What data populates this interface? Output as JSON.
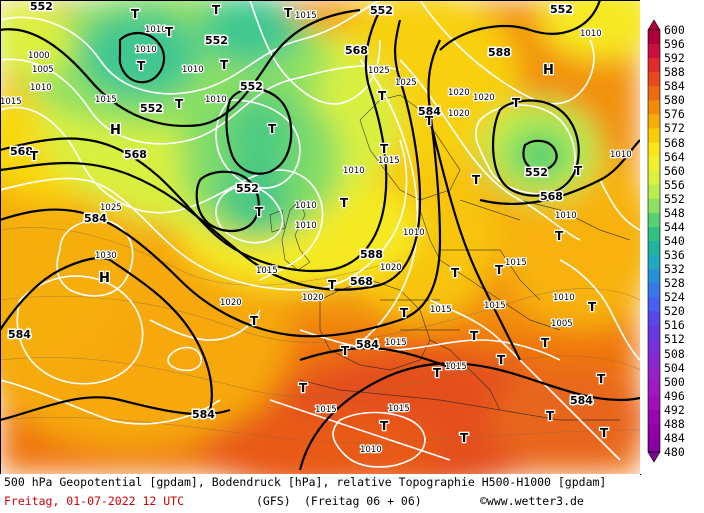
{
  "footer": {
    "line1": "500 hPa Geopotential [gpdam], Bodendruck [hPa], relative Topographie H500-H1000 [gpdam]",
    "date": "Freitag, 01-07-2022  12 UTC",
    "model": "(GFS)",
    "run": "(Freitag 06 + 06)",
    "site": "©www.wetter3.de"
  },
  "colorbar": {
    "labels": [
      "600",
      "596",
      "592",
      "588",
      "584",
      "580",
      "576",
      "572",
      "568",
      "564",
      "560",
      "556",
      "552",
      "548",
      "544",
      "540",
      "536",
      "532",
      "528",
      "524",
      "520",
      "516",
      "512",
      "508",
      "504",
      "500",
      "496",
      "492",
      "488",
      "484",
      "480"
    ],
    "colors": [
      "#b0003c",
      "#c8103c",
      "#dd2a2a",
      "#e84a1c",
      "#ee6a10",
      "#f28c08",
      "#f6ad08",
      "#f9cc08",
      "#fae61a",
      "#f0f030",
      "#dcf040",
      "#b8ec50",
      "#8ee060",
      "#58d070",
      "#30c080",
      "#20b4a0",
      "#20a8c0",
      "#2890d8",
      "#3878e8",
      "#4860f0",
      "#5848e8",
      "#6838e0",
      "#7830d8",
      "#8828d0",
      "#9820c8",
      "#a018c0",
      "#a010b8",
      "#9808b0",
      "#9000a8",
      "#8800a0",
      "#800098"
    ]
  },
  "map": {
    "geopotential_labels": [
      "552",
      "552",
      "552",
      "568",
      "568",
      "588",
      "552",
      "552",
      "552",
      "552",
      "568",
      "568",
      "584",
      "588",
      "552",
      "568",
      "584",
      "584",
      "584",
      "584",
      "584"
    ],
    "pressure_labels": [
      "1010",
      "1010",
      "1010",
      "1015",
      "1015",
      "1010",
      "1000",
      "1005",
      "1015",
      "1010",
      "1020",
      "1025",
      "1020",
      "1020",
      "1015",
      "1010",
      "1025",
      "1030",
      "1020",
      "1020",
      "1010",
      "1015",
      "1020",
      "1025",
      "1010",
      "1015",
      "1010",
      "1015",
      "1015",
      "1005",
      "1015",
      "1015",
      "1010",
      "1010",
      "1015",
      "1010",
      "1010",
      "1010",
      "1015"
    ],
    "high_labels": [
      "H",
      "H",
      "H"
    ],
    "low_labels": [
      "T",
      "T",
      "T",
      "T",
      "T",
      "T",
      "T",
      "T",
      "T",
      "T",
      "T",
      "T",
      "T",
      "T",
      "T",
      "T",
      "T",
      "T",
      "T",
      "T",
      "T",
      "T",
      "T",
      "T",
      "T",
      "T",
      "T",
      "T",
      "T",
      "T",
      "T",
      "T",
      "T",
      "T",
      "T"
    ]
  }
}
